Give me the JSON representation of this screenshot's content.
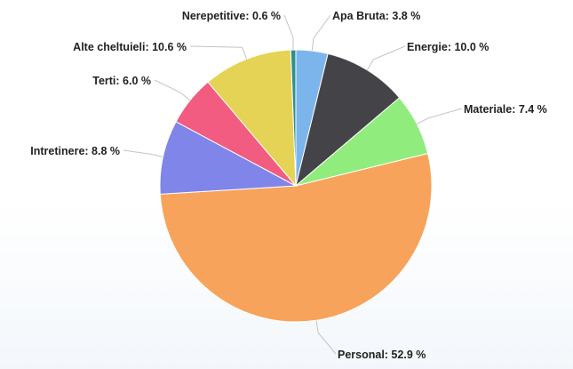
{
  "chart_data": {
    "type": "pie",
    "title": "",
    "unit": "%",
    "start_angle_deg": 0,
    "direction": "clockwise",
    "slices": [
      {
        "name": "Apa Bruta",
        "value": 3.8,
        "label": "Apa Bruta: 3.8 %",
        "color": "#7cb5ec"
      },
      {
        "name": "Energie",
        "value": 10.0,
        "label": "Energie: 10.0 %",
        "color": "#434348"
      },
      {
        "name": "Materiale",
        "value": 7.4,
        "label": "Materiale: 7.4 %",
        "color": "#90ed7d"
      },
      {
        "name": "Personal",
        "value": 52.9,
        "label": "Personal: 52.9 %",
        "color": "#f7a35c"
      },
      {
        "name": "Intretinere",
        "value": 8.8,
        "label": "Intretinere: 8.8 %",
        "color": "#8085e9"
      },
      {
        "name": "Terti",
        "value": 6.0,
        "label": "Terti: 6.0 %",
        "color": "#f15c80"
      },
      {
        "name": "Alte cheltuieli",
        "value": 10.6,
        "label": "Alte cheltuieli: 10.6 %",
        "color": "#e4d354"
      },
      {
        "name": "Nerepetitive",
        "value": 0.6,
        "label": "Nerepetitive: 0.6 %",
        "color": "#2b908f"
      }
    ]
  }
}
